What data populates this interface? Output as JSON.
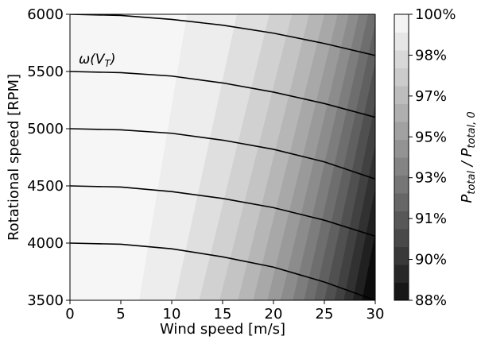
{
  "chart_data": {
    "type": "heatmap",
    "xlabel": "Wind speed [m/s]",
    "ylabel": "Rotational speed [RPM]",
    "xlim": [
      0,
      30
    ],
    "ylim": [
      3500,
      6000
    ],
    "x_ticks": [
      "0",
      "5",
      "10",
      "15",
      "20",
      "25",
      "30"
    ],
    "y_ticks": [
      "3500",
      "4000",
      "4500",
      "5000",
      "5500",
      "6000"
    ],
    "colorbar": {
      "label": "P_total / P_total,0",
      "ticks": [
        "88%",
        "90%",
        "91%",
        "93%",
        "95%",
        "97%",
        "98%",
        "100%"
      ],
      "range": [
        88,
        100
      ]
    },
    "curve_label": "ω(V_T)",
    "curves": [
      {
        "start_rpm": 6000,
        "points": [
          [
            0,
            6000
          ],
          [
            5,
            5990
          ],
          [
            10,
            5955
          ],
          [
            15,
            5905
          ],
          [
            20,
            5835
          ],
          [
            25,
            5745
          ],
          [
            30,
            5640
          ]
        ]
      },
      {
        "start_rpm": 5500,
        "points": [
          [
            0,
            5500
          ],
          [
            5,
            5490
          ],
          [
            10,
            5460
          ],
          [
            15,
            5400
          ],
          [
            20,
            5320
          ],
          [
            25,
            5220
          ],
          [
            30,
            5100
          ]
        ]
      },
      {
        "start_rpm": 5000,
        "points": [
          [
            0,
            5000
          ],
          [
            5,
            4990
          ],
          [
            10,
            4960
          ],
          [
            15,
            4900
          ],
          [
            20,
            4820
          ],
          [
            25,
            4710
          ],
          [
            30,
            4560
          ]
        ]
      },
      {
        "start_rpm": 4500,
        "points": [
          [
            0,
            4500
          ],
          [
            5,
            4490
          ],
          [
            10,
            4450
          ],
          [
            15,
            4390
          ],
          [
            20,
            4310
          ],
          [
            25,
            4200
          ],
          [
            30,
            4060
          ]
        ]
      },
      {
        "start_rpm": 4000,
        "points": [
          [
            0,
            4000
          ],
          [
            5,
            3990
          ],
          [
            10,
            3950
          ],
          [
            15,
            3880
          ],
          [
            20,
            3790
          ],
          [
            25,
            3660
          ],
          [
            30,
            3500
          ]
        ]
      }
    ],
    "contour_bands": [
      {
        "level": 99.25,
        "bottom_x": 6.8,
        "top_x": 11.5
      },
      {
        "level": 98.5,
        "bottom_x": 10.3,
        "top_x": 16.4
      },
      {
        "level": 97.75,
        "bottom_x": 12.7,
        "top_x": 19.6
      },
      {
        "level": 97.0,
        "bottom_x": 14.7,
        "top_x": 21.8
      },
      {
        "level": 96.25,
        "bottom_x": 16.5,
        "top_x": 23.5
      },
      {
        "level": 95.5,
        "bottom_x": 18.0,
        "top_x": 25.0
      },
      {
        "level": 94.75,
        "bottom_x": 19.4,
        "top_x": 26.3
      },
      {
        "level": 94.0,
        "bottom_x": 20.7,
        "top_x": 27.4
      },
      {
        "level": 93.25,
        "bottom_x": 21.9,
        "top_x": 28.4
      },
      {
        "level": 92.5,
        "bottom_x": 23.0,
        "top_x": 29.3
      },
      {
        "level": 91.75,
        "bottom_x": 24.0,
        "top_x": 30.2
      },
      {
        "level": 91.0,
        "bottom_x": 25.0,
        "top_x": 31.0
      },
      {
        "level": 90.25,
        "bottom_x": 26.0,
        "top_x": 31.8
      },
      {
        "level": 89.5,
        "bottom_x": 26.9,
        "top_x": 32.6
      },
      {
        "level": 88.75,
        "bottom_x": 27.8,
        "top_x": 33.4
      },
      {
        "level": 88.0,
        "bottom_x": 28.7,
        "top_x": 34.2
      }
    ]
  }
}
